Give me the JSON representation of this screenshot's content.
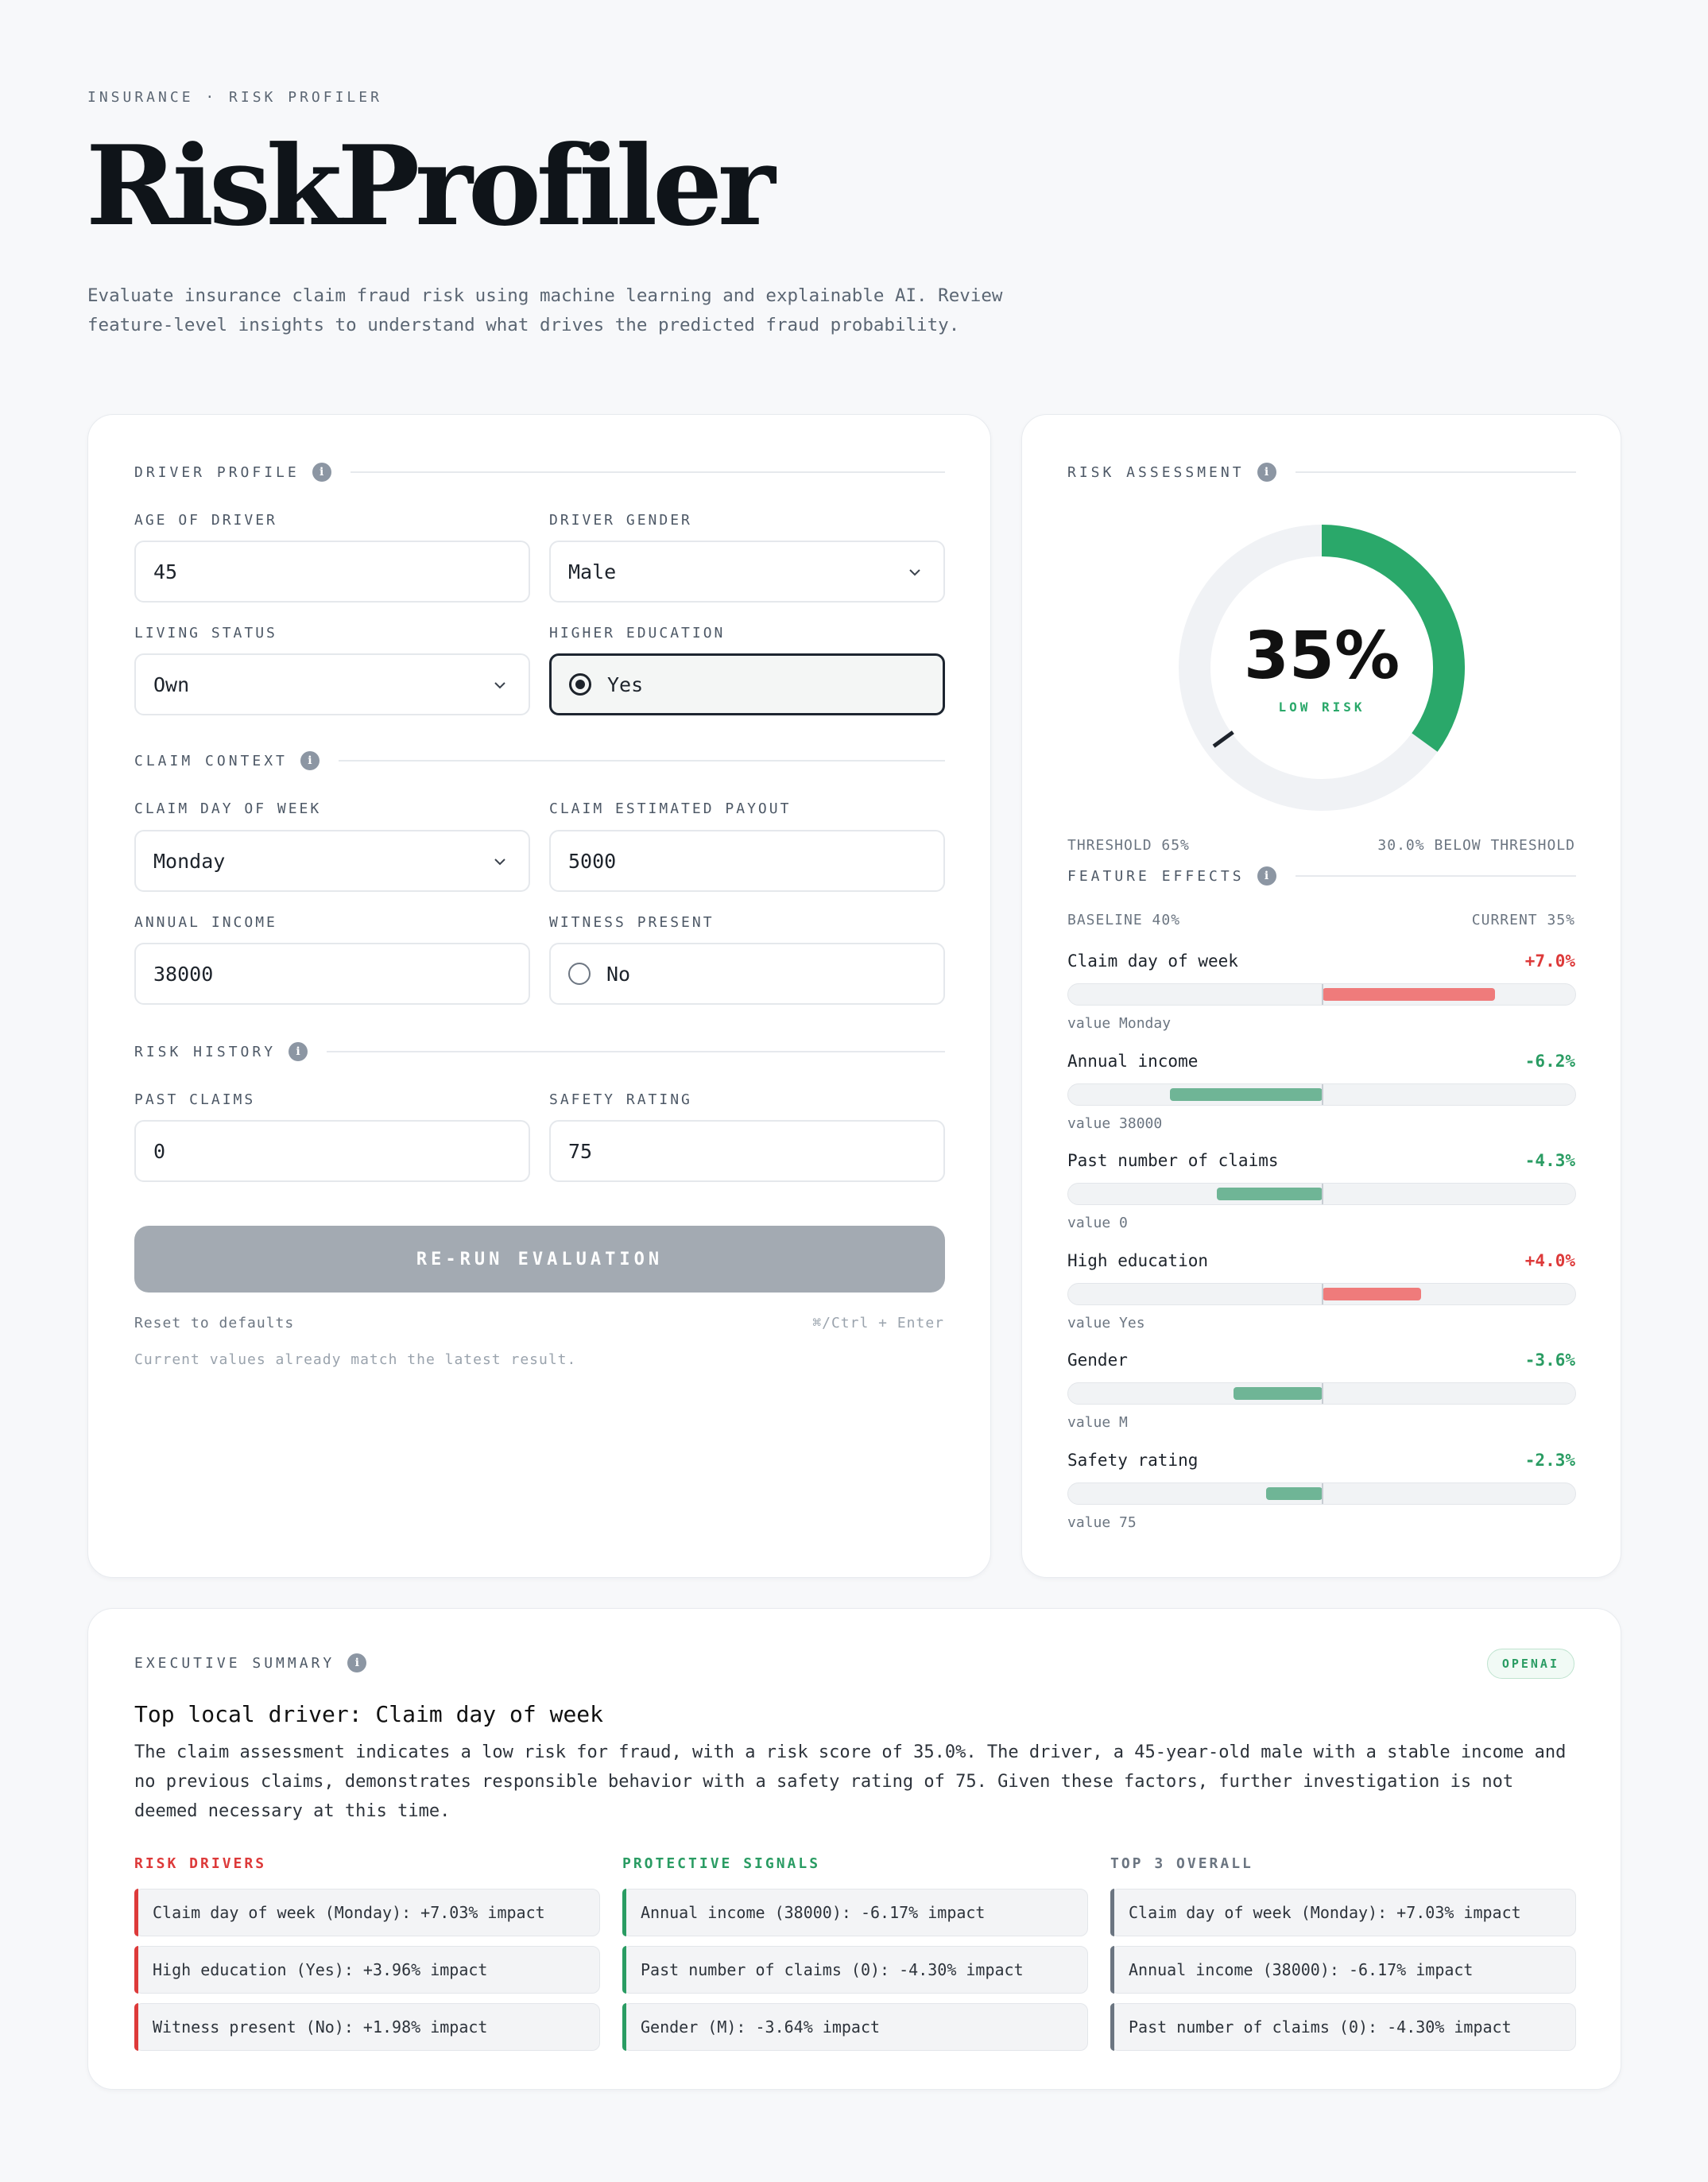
{
  "header": {
    "eyebrow": "INSURANCE · RISK PROFILER",
    "title": "RiskProfiler",
    "description": "Evaluate insurance claim fraud risk using machine learning and explainable AI. Review feature-level insights to understand what drives the predicted fraud probability."
  },
  "form": {
    "driver_profile": {
      "heading": "DRIVER PROFILE",
      "age_label": "AGE OF DRIVER",
      "age_value": "45",
      "gender_label": "DRIVER GENDER",
      "gender_value": "Male",
      "living_label": "LIVING STATUS",
      "living_value": "Own",
      "education_label": "HIGHER EDUCATION",
      "education_value": "Yes"
    },
    "claim_context": {
      "heading": "CLAIM CONTEXT",
      "day_label": "CLAIM DAY OF WEEK",
      "day_value": "Monday",
      "payout_label": "CLAIM ESTIMATED PAYOUT",
      "payout_value": "5000",
      "income_label": "ANNUAL INCOME",
      "income_value": "38000",
      "witness_label": "WITNESS PRESENT",
      "witness_value": "No"
    },
    "risk_history": {
      "heading": "RISK HISTORY",
      "claims_label": "PAST CLAIMS",
      "claims_value": "0",
      "safety_label": "SAFETY RATING",
      "safety_value": "75"
    },
    "rerun_label": "RE-RUN EVALUATION",
    "reset_label": "Reset to defaults",
    "shortcut": "⌘/Ctrl + Enter",
    "status_hint": "Current values already match the latest result."
  },
  "risk": {
    "heading": "RISK ASSESSMENT",
    "score_text": "35%",
    "score": 35,
    "threshold": 65,
    "level": "LOW RISK",
    "threshold_label": "THRESHOLD 65%",
    "delta_label": "30.0% BELOW THRESHOLD",
    "colors": {
      "arc": "#2aa86a",
      "track": "#f0f2f5",
      "marker": "#1d232b"
    }
  },
  "features": {
    "heading": "FEATURE EFFECTS",
    "baseline": "BASELINE 40%",
    "current": "CURRENT 35%",
    "scale_max": 10,
    "items": [
      {
        "name": "Claim day of week",
        "impact": 7.0,
        "impact_text": "+7.0%",
        "sub": "value Monday"
      },
      {
        "name": "Annual income",
        "impact": -6.2,
        "impact_text": "-6.2%",
        "sub": "value 38000"
      },
      {
        "name": "Past number of claims",
        "impact": -4.3,
        "impact_text": "-4.3%",
        "sub": "value 0"
      },
      {
        "name": "High education",
        "impact": 4.0,
        "impact_text": "+4.0%",
        "sub": "value Yes"
      },
      {
        "name": "Gender",
        "impact": -3.6,
        "impact_text": "-3.6%",
        "sub": "value M"
      },
      {
        "name": "Safety rating",
        "impact": -2.3,
        "impact_text": "-2.3%",
        "sub": "value 75"
      }
    ]
  },
  "summary": {
    "heading": "EXECUTIVE SUMMARY",
    "badge": "OPENAI",
    "title": "Top local driver: Claim day of week",
    "text": "The claim assessment indicates a low risk for fraud, with a risk score of 35.0%. The driver, a 45-year-old male with a stable income and no previous claims, demonstrates responsible behavior with a safety rating of 75. Given these factors, further investigation is not deemed necessary at this time.",
    "columns": [
      {
        "heading": "RISK DRIVERS",
        "color": "#dd3a3a",
        "items": [
          "Claim day of week (Monday): +7.03% impact",
          "High education (Yes): +3.96% impact",
          "Witness present (No): +1.98% impact"
        ]
      },
      {
        "heading": "PROTECTIVE SIGNALS",
        "color": "#2a9c63",
        "items": [
          "Annual income (38000): -6.17% impact",
          "Past number of claims (0): -4.30% impact",
          "Gender (M): -3.64% impact"
        ]
      },
      {
        "heading": "TOP 3 OVERALL",
        "color": "#6b7581",
        "items": [
          "Claim day of week (Monday): +7.03% impact",
          "Annual income (38000): -6.17% impact",
          "Past number of claims (0): -4.30% impact"
        ]
      }
    ]
  }
}
